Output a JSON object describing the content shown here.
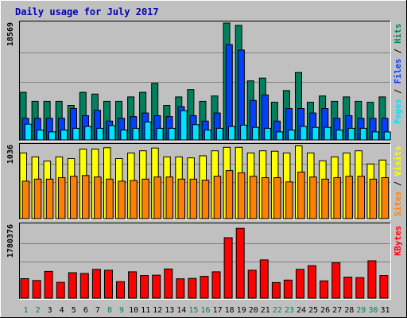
{
  "chart_data": {
    "type": "bar",
    "title": "Daily usage for July 2017",
    "categories": [
      "1",
      "2",
      "3",
      "4",
      "5",
      "6",
      "7",
      "8",
      "9",
      "10",
      "11",
      "12",
      "13",
      "14",
      "15",
      "16",
      "17",
      "18",
      "19",
      "20",
      "21",
      "22",
      "23",
      "24",
      "25",
      "26",
      "27",
      "28",
      "29",
      "30",
      "31"
    ],
    "weekend_days": [
      "1",
      "2",
      "8",
      "9",
      "15",
      "16",
      "22",
      "23",
      "29",
      "30"
    ],
    "colors": {
      "hits": "#00805c",
      "files": "#0040ff",
      "pages": "#00e0ff",
      "visits": "#ffff00",
      "sites": "#ff8000",
      "kbytes": "#ff0000",
      "title": "#0000b0",
      "weekday_label": "#000000",
      "weekend_label": "#00805c",
      "panel_bg": "#c0c0c0",
      "gridline": "#808080"
    },
    "panels": [
      {
        "id": "usage",
        "scale_label": "18569",
        "ymax": 18569,
        "legend": [
          {
            "text": "Pages",
            "color": "#00e0ff"
          },
          {
            "text": "Files",
            "color": "#0040ff"
          },
          {
            "text": "Hits",
            "color": "#00805c"
          }
        ],
        "series": [
          {
            "name": "Hits",
            "color": "#00805c",
            "values": [
              7570,
              6140,
              6140,
              6140,
              5500,
              7570,
              7290,
              6140,
              6140,
              6840,
              7570,
              8990,
              5500,
              6840,
              7990,
              6140,
              6990,
              18570,
              18200,
              9390,
              9830,
              5990,
              7840,
              10710,
              5990,
              6990,
              6140,
              6840,
              6140,
              5990,
              6840
            ]
          },
          {
            "name": "Files",
            "color": "#0040ff",
            "values": [
              3430,
              3430,
              3430,
              3430,
              4990,
              3850,
              4710,
              2990,
              3430,
              3710,
              4280,
              3850,
              3710,
              5280,
              3850,
              2990,
              4280,
              15140,
              14280,
              6280,
              7140,
              3000,
              4990,
              4990,
              4280,
              4990,
              3430,
              3850,
              3430,
              3430,
              3430
            ]
          },
          {
            "name": "Pages",
            "color": "#00e0ff",
            "values": [
              2500,
              1570,
              1280,
              1570,
              1850,
              2140,
              1850,
              2280,
              1570,
              1850,
              2850,
              1850,
              1850,
              4630,
              2430,
              1570,
              1850,
              2130,
              2350,
              2000,
              1850,
              1280,
              1570,
              2130,
              2000,
              2000,
              1570,
              1850,
              1850,
              1280,
              1280
            ]
          }
        ]
      },
      {
        "id": "visits",
        "scale_label": "1036",
        "ymax": 1036,
        "legend": [
          {
            "text": "Sites",
            "color": "#ff8000"
          },
          {
            "text": "Visits",
            "color": "#ffff00"
          }
        ],
        "series": [
          {
            "name": "Visits",
            "color": "#ffff00",
            "values": [
              930,
              875,
              815,
              875,
              850,
              985,
              985,
              1005,
              850,
              930,
              960,
              1000,
              875,
              875,
              860,
              890,
              960,
              1010,
              1010,
              930,
              960,
              955,
              930,
              1030,
              930,
              820,
              875,
              930,
              960,
              775,
              830
            ]
          },
          {
            "name": "Sites",
            "color": "#ff8000",
            "values": [
              530,
              560,
              560,
              580,
              600,
              610,
              590,
              560,
              530,
              540,
              560,
              590,
              590,
              560,
              560,
              545,
              600,
              680,
              650,
              600,
              580,
              580,
              520,
              660,
              590,
              560,
              580,
              600,
              600,
              560,
              580
            ]
          }
        ]
      },
      {
        "id": "kbytes",
        "scale_label": "1780376",
        "ymax": 1780376,
        "legend": [
          {
            "text": "KBytes",
            "color": "#ff0000"
          }
        ],
        "series": [
          {
            "name": "KBytes",
            "color": "#ff0000",
            "values": [
              475000,
              430000,
              650000,
              385000,
              620000,
              600000,
              700000,
              680000,
              400000,
              640000,
              550000,
              560000,
              710000,
              470000,
              480000,
              530000,
              640000,
              1470000,
              1700000,
              680000,
              930000,
              380000,
              440000,
              700000,
              790000,
              420000,
              860000,
              510000,
              500000,
              910000,
              550000
            ]
          }
        ]
      }
    ]
  }
}
